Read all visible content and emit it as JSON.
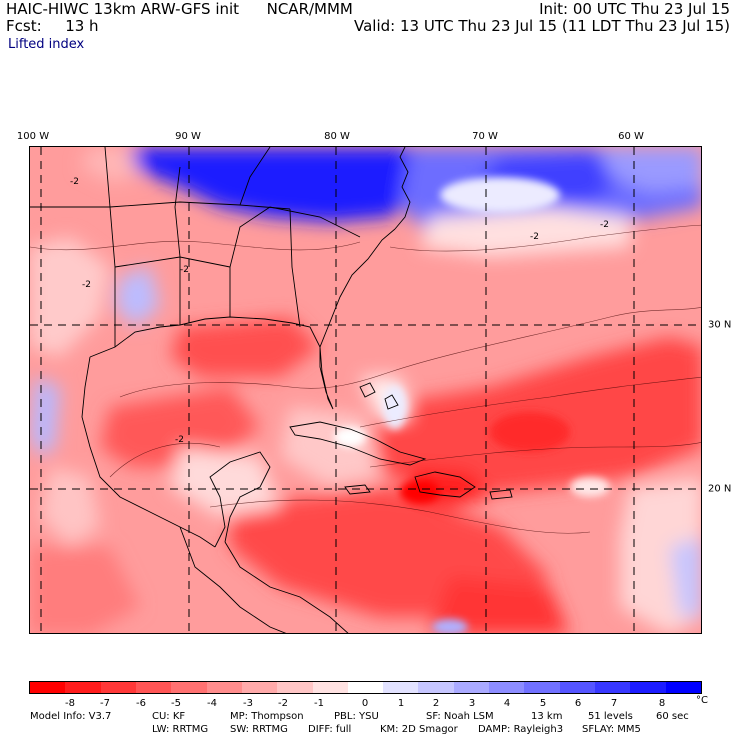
{
  "header": {
    "title": "HAIC-HIWC 13km ARW-GFS init",
    "org": "NCAR/MMM",
    "fcst_label": "Fcst:",
    "fcst_value": "13 h",
    "init": "Init: 00 UTC Thu 23 Jul 15",
    "valid": "Valid: 13 UTC Thu 23 Jul 15 (11 LDT Thu 23 Jul 15)",
    "field": "Lifted index"
  },
  "axes": {
    "longitude_labels": [
      "100 W",
      "90 W",
      "80 W",
      "70 W",
      "60 W"
    ],
    "latitude_labels": [
      "30 N",
      "20 N"
    ]
  },
  "map_annotations": {
    "contour_labels": [
      "-2",
      "-2",
      "-2",
      "-2",
      "-2",
      "-2"
    ]
  },
  "colorbar": {
    "labels": [
      "-8",
      "-7",
      "-6",
      "-5",
      "-4",
      "-3",
      "-2",
      "-1",
      "0",
      "1",
      "2",
      "3",
      "4",
      "5",
      "6",
      "7",
      "8"
    ],
    "unit": "°C",
    "colors": [
      "#ff0000",
      "#ff1c1c",
      "#ff3838",
      "#ff5555",
      "#ff7171",
      "#ff8d8d",
      "#ffaaaa",
      "#ffc6c6",
      "#ffe2e2",
      "#ffffff",
      "#e2e2ff",
      "#c6c6ff",
      "#aaaaff",
      "#8d8dff",
      "#7171ff",
      "#5555ff",
      "#3838ff",
      "#1c1cff",
      "#0000ff"
    ]
  },
  "model_info": {
    "row1": [
      "Model Info: V3.7",
      "CU: KF",
      "MP: Thompson",
      "PBL: YSU",
      "SF: Noah LSM",
      "13 km",
      "51 levels",
      "60 sec"
    ],
    "row2": [
      "LW: RRTMG",
      "SW: RRTMG",
      "DIFF: full",
      "KM: 2D Smagor",
      "DAMP: Rayleigh3",
      "SFLAY: MM5"
    ]
  }
}
